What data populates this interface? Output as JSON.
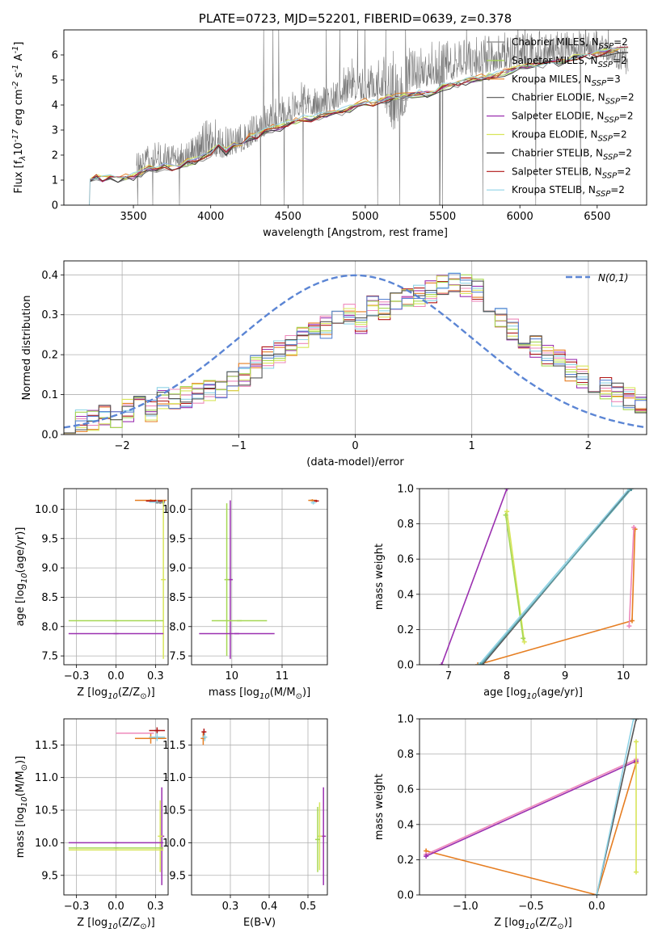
{
  "chart_data": [
    {
      "type": "line",
      "panel": "spectrum",
      "title": "PLATE=0723, MJD=52201, FIBERID=0639, z=0.378",
      "xlabel": "wavelength [Angstrom, rest frame]",
      "ylabel": "Flux [f$_λ$10$^{-17}$ erg cm$^{-2}$ s$^{-1}$ A$^{-1}$]",
      "xlim": [
        3050,
        6820
      ],
      "ylim": [
        0,
        7
      ],
      "xticks": [
        3500,
        4000,
        4500,
        5000,
        5500,
        6000,
        6500
      ],
      "yticks": [
        0,
        1,
        2,
        3,
        4,
        5,
        6
      ],
      "grid": false,
      "legend_position": "top-right",
      "observed_envelope": {
        "x": [
          3520,
          3600,
          3700,
          3800,
          3900,
          4000,
          4100,
          4200,
          4300,
          4400,
          4500,
          4600,
          4700,
          4800,
          4900,
          5000,
          5100,
          5200,
          5300,
          5400,
          5500,
          5600,
          5700,
          5800,
          5900,
          6000,
          6100,
          6200,
          6300,
          6400,
          6500,
          6600,
          6700
        ],
        "low": [
          0.6,
          0.8,
          0.9,
          1.0,
          0.9,
          1.0,
          1.2,
          1.5,
          1.9,
          2.3,
          2.6,
          2.9,
          3.0,
          3.1,
          3.2,
          3.5,
          3.6,
          0.5,
          3.6,
          3.8,
          3.9,
          4.2,
          4.3,
          4.4,
          4.7,
          4.8,
          4.9,
          5.0,
          5.2,
          5.3,
          5.4,
          5.0,
          4.5
        ],
        "high": [
          2.3,
          2.5,
          2.6,
          2.5,
          2.9,
          3.6,
          3.2,
          3.3,
          3.7,
          4.3,
          4.4,
          5.1,
          4.6,
          5.1,
          6.0,
          5.5,
          5.9,
          6.3,
          6.4,
          6.5,
          6.7,
          6.6,
          6.7,
          6.9,
          6.9,
          6.9,
          7.0,
          7.0,
          7.0,
          7.0,
          7.0,
          6.6,
          6.3
        ]
      },
      "model": {
        "x": [
          3220,
          3260,
          3300,
          3350,
          3400,
          3450,
          3500,
          3550,
          3600,
          3650,
          3700,
          3750,
          3800,
          3850,
          3900,
          3950,
          4000,
          4050,
          4100,
          4150,
          4200,
          4250,
          4300,
          4350,
          4400,
          4450,
          4500,
          4550,
          4600,
          4650,
          4700,
          4750,
          4800,
          4850,
          4900,
          4950,
          5000,
          5050,
          5100,
          5150,
          5200,
          5250,
          5300,
          5350,
          5400,
          5450,
          5500,
          5550,
          5600,
          5650,
          5700,
          5750,
          5800,
          5850,
          5900,
          5950,
          6000,
          6050,
          6100,
          6150,
          6200,
          6250,
          6300,
          6350,
          6400,
          6450,
          6500,
          6550,
          6600,
          6650,
          6700
        ],
        "y": [
          1.05,
          1.1,
          1.05,
          1.12,
          1.08,
          1.1,
          1.15,
          1.3,
          1.45,
          1.4,
          1.55,
          1.5,
          1.6,
          1.7,
          1.75,
          1.9,
          2.1,
          2.3,
          2.15,
          2.4,
          2.45,
          2.7,
          2.75,
          2.9,
          3.05,
          3.1,
          3.25,
          3.35,
          3.45,
          3.4,
          3.55,
          3.6,
          3.7,
          3.75,
          3.85,
          4.0,
          4.1,
          4.05,
          4.2,
          4.25,
          4.3,
          4.35,
          4.4,
          4.45,
          4.45,
          4.6,
          4.7,
          4.8,
          4.85,
          4.95,
          5.0,
          5.1,
          5.15,
          5.2,
          5.3,
          5.4,
          5.45,
          5.55,
          5.6,
          5.65,
          5.75,
          5.7,
          5.85,
          5.9,
          5.95,
          6.0,
          6.05,
          6.1,
          6.15,
          6.2,
          6.2
        ]
      },
      "series": [
        {
          "name": "Chabrier MILES, N$_{SSP}$=2",
          "color": "#888888"
        },
        {
          "name": "Salpeter MILES, N$_{SSP}$=2",
          "color": "#a6d854"
        },
        {
          "name": "Kroupa MILES, N$_{SSP}$=3",
          "color": "#e67e22"
        },
        {
          "name": "Chabrier ELODIE, N$_{SSP}$=2",
          "color": "#555555"
        },
        {
          "name": "Salpeter ELODIE, N$_{SSP}$=2",
          "color": "#9b30b0"
        },
        {
          "name": "Kroupa ELODIE, N$_{SSP}$=2",
          "color": "#d8e55a"
        },
        {
          "name": "Chabrier STELIB, N$_{SSP}$=2",
          "color": "#333333"
        },
        {
          "name": "Salpeter STELIB, N$_{SSP}$=2",
          "color": "#b01515"
        },
        {
          "name": "Kroupa STELIB, N$_{SSP}$=2",
          "color": "#8fd3e6"
        }
      ]
    },
    {
      "type": "line",
      "panel": "residual-distribution",
      "xlabel": "(data-model)/error",
      "ylabel": "Normed distribution",
      "xlim": [
        -2.5,
        2.5
      ],
      "ylim": [
        0,
        0.435
      ],
      "xticks": [
        -2,
        -1,
        0,
        1,
        2
      ],
      "yticks": [
        0.0,
        0.1,
        0.2,
        0.3,
        0.4
      ],
      "grid": true,
      "legend_position": "top-right",
      "gaussian": {
        "name": "$\\mathcal{N}(0,1)$",
        "mean": 0,
        "sigma": 1,
        "color": "#5b85d4"
      },
      "histogram_bins": [
        -2.5,
        2.5,
        50
      ],
      "histogram_center": [
        0.018,
        0.032,
        0.04,
        0.05,
        0.045,
        0.06,
        0.075,
        0.06,
        0.09,
        0.085,
        0.095,
        0.1,
        0.11,
        0.12,
        0.135,
        0.15,
        0.17,
        0.19,
        0.21,
        0.22,
        0.24,
        0.25,
        0.27,
        0.28,
        0.3,
        0.28,
        0.32,
        0.31,
        0.33,
        0.34,
        0.35,
        0.36,
        0.37,
        0.38,
        0.37,
        0.36,
        0.33,
        0.29,
        0.26,
        0.24,
        0.22,
        0.2,
        0.185,
        0.16,
        0.145,
        0.13,
        0.115,
        0.1,
        0.09,
        0.065
      ],
      "histogram_colors": [
        "#e67e22",
        "#9b30b0",
        "#b01515",
        "#8fd3e6",
        "#ee88bb",
        "#d8e55a",
        "#a6d854",
        "#5b85d4",
        "#555555"
      ]
    },
    {
      "type": "scatter",
      "panel": "age-vs-Z",
      "xlabel": "Z [log$_{10}$(Z/Z$_⊙$)]",
      "ylabel": "age  [log$_{10}$(age/yr)]",
      "xlim": [
        -0.33,
        0.33
      ],
      "ylim": [
        7.35,
        10.35
      ],
      "xticks": [
        -0.25,
        0.0,
        0.25
      ],
      "yticks": [
        7.5,
        8.0,
        8.5,
        9.0,
        9.5,
        10.0
      ],
      "grid": true,
      "errorbars": [
        {
          "x": 0.22,
          "y": 10.15,
          "xerr": 0.1,
          "yerr": 0.02,
          "color": "#e67e22"
        },
        {
          "x": 0.25,
          "y": 10.14,
          "xerr": 0.06,
          "yerr": 0.02,
          "color": "#b01515"
        },
        {
          "x": 0.26,
          "y": 10.12,
          "xerr": 0.05,
          "yerr": 0.03,
          "color": "#8fd3e6"
        },
        {
          "x": 0.28,
          "y": 10.11,
          "xerr": 0.03,
          "yerr": 0.02,
          "color": "#888888"
        },
        {
          "x": 0.3,
          "y": 8.8,
          "xerr": 0.0,
          "yerr": 1.35,
          "color": "#d8e55a"
        },
        {
          "x": 0.0,
          "y": 8.1,
          "xerr": 0.3,
          "yerr": 0.0,
          "color": "#a6d854"
        },
        {
          "x": 0.0,
          "y": 7.88,
          "xerr": 0.3,
          "yerr": 0.0,
          "color": "#9b30b0"
        }
      ]
    },
    {
      "type": "scatter",
      "panel": "age-vs-mass",
      "xlabel": "mass [log$_{10}$(M/M$_⊙$)]",
      "xlim": [
        9.2,
        11.9
      ],
      "ylim": [
        7.35,
        10.35
      ],
      "xticks": [
        10,
        11
      ],
      "yticks": [
        7.5,
        8.0,
        8.5,
        9.0,
        9.5,
        10.0
      ],
      "grid": true,
      "errorbars": [
        {
          "x": 11.6,
          "y": 10.15,
          "xerr": 0.08,
          "yerr": 0.02,
          "color": "#e67e22"
        },
        {
          "x": 11.68,
          "y": 10.14,
          "xerr": 0.05,
          "yerr": 0.02,
          "color": "#b01515"
        },
        {
          "x": 11.62,
          "y": 10.11,
          "xerr": 0.04,
          "yerr": 0.03,
          "color": "#8fd3e6"
        },
        {
          "x": 9.97,
          "y": 8.8,
          "xerr": 0.0,
          "yerr": 1.35,
          "color": "#9b30b0"
        },
        {
          "x": 9.9,
          "y": 8.8,
          "xerr": 0.0,
          "yerr": 1.3,
          "color": "#a6d854"
        },
        {
          "x": 10.15,
          "y": 8.1,
          "xerr": 0.55,
          "yerr": 0.0,
          "color": "#a6d854"
        },
        {
          "x": 10.1,
          "y": 7.88,
          "xerr": 0.75,
          "yerr": 0.0,
          "color": "#9b30b0"
        }
      ]
    },
    {
      "type": "line",
      "panel": "mass-weight-vs-age",
      "xlabel": "age  [log$_{10}$(age/yr)]",
      "ylabel": "mass weight",
      "xlim": [
        6.5,
        10.4
      ],
      "ylim": [
        0,
        1
      ],
      "xticks": [
        7,
        8,
        9,
        10
      ],
      "yticks": [
        0.0,
        0.2,
        0.4,
        0.6,
        0.8,
        1.0
      ],
      "grid": true,
      "series": [
        {
          "color": "#9b30b0",
          "x": [
            6.88,
            8.0
          ],
          "y": [
            0.0,
            1.0
          ]
        },
        {
          "color": "#d8e55a",
          "x": [
            8.0,
            8.3
          ],
          "y": [
            0.87,
            0.13
          ]
        },
        {
          "color": "#a6d854",
          "x": [
            7.98,
            8.28
          ],
          "y": [
            0.85,
            0.15
          ]
        },
        {
          "color": "#e67e22",
          "x": [
            7.5,
            10.15,
            10.2
          ],
          "y": [
            0.0,
            0.25,
            0.77
          ]
        },
        {
          "color": "#ee88bb",
          "x": [
            10.1,
            10.18
          ],
          "y": [
            0.22,
            0.78
          ]
        },
        {
          "color": "#555555",
          "x": [
            7.58,
            10.12
          ],
          "y": [
            0.0,
            1.0
          ]
        },
        {
          "color": "#8fd3e6",
          "x": [
            7.52,
            10.1
          ],
          "y": [
            0.0,
            1.0
          ]
        },
        {
          "color": "#5aa0a8",
          "x": [
            7.55,
            10.14
          ],
          "y": [
            0.0,
            1.0
          ]
        }
      ]
    },
    {
      "type": "scatter",
      "panel": "mass-vs-Z",
      "xlabel": "Z [log$_{10}$(Z/Z$_⊙$)]",
      "ylabel": "mass [log$_{10}$(M/M$_⊙$)]",
      "xlim": [
        -0.33,
        0.33
      ],
      "ylim": [
        9.2,
        11.9
      ],
      "xticks": [
        -0.25,
        0.0,
        0.25
      ],
      "yticks": [
        9.5,
        10.0,
        10.5,
        11.0,
        11.5
      ],
      "grid": true,
      "errorbars": [
        {
          "x": 0.22,
          "y": 11.6,
          "xerr": 0.1,
          "yerr": 0.08,
          "color": "#e67e22"
        },
        {
          "x": 0.26,
          "y": 11.72,
          "xerr": 0.05,
          "yerr": 0.05,
          "color": "#b01515"
        },
        {
          "x": 0.26,
          "y": 11.62,
          "xerr": 0.05,
          "yerr": 0.06,
          "color": "#8fd3e6"
        },
        {
          "x": 0.12,
          "y": 11.68,
          "xerr": 0.12,
          "yerr": 0.0,
          "color": "#ee88bb"
        },
        {
          "x": 0.29,
          "y": 10.1,
          "xerr": 0.0,
          "yerr": 0.75,
          "color": "#9b30b0"
        },
        {
          "x": 0.28,
          "y": 10.1,
          "xerr": 0.0,
          "yerr": 0.55,
          "color": "#d8e55a"
        },
        {
          "x": 0.0,
          "y": 10.0,
          "xerr": 0.3,
          "yerr": 0.0,
          "color": "#9b30b0"
        },
        {
          "x": 0.0,
          "y": 9.92,
          "xerr": 0.3,
          "yerr": 0.0,
          "color": "#a6d854"
        },
        {
          "x": 0.0,
          "y": 9.89,
          "xerr": 0.3,
          "yerr": 0.0,
          "color": "#d8e55a"
        }
      ]
    },
    {
      "type": "scatter",
      "panel": "mass-vs-EBV",
      "xlabel": "E(B-V)",
      "xlim": [
        0.2,
        0.55
      ],
      "ylim": [
        9.2,
        11.9
      ],
      "xticks": [
        0.3,
        0.4,
        0.5
      ],
      "yticks": [
        9.5,
        10.0,
        10.5,
        11.0,
        11.5
      ],
      "grid": true,
      "errorbars": [
        {
          "x": 0.23,
          "y": 11.6,
          "xerr": 0.0,
          "yerr": 0.1,
          "color": "#e67e22"
        },
        {
          "x": 0.232,
          "y": 11.7,
          "xerr": 0.0,
          "yerr": 0.05,
          "color": "#b01515"
        },
        {
          "x": 0.234,
          "y": 11.62,
          "xerr": 0.0,
          "yerr": 0.06,
          "color": "#8fd3e6"
        },
        {
          "x": 0.54,
          "y": 10.1,
          "xerr": 0.0,
          "yerr": 0.75,
          "color": "#9b30b0"
        },
        {
          "x": 0.53,
          "y": 10.1,
          "xerr": 0.0,
          "yerr": 0.52,
          "color": "#d8e55a"
        },
        {
          "x": 0.525,
          "y": 10.05,
          "xerr": 0.0,
          "yerr": 0.5,
          "color": "#a6d854"
        }
      ]
    },
    {
      "type": "line",
      "panel": "mass-weight-vs-Z",
      "xlabel": "Z [log$_{10}$(Z/Z$_⊙$)]",
      "ylabel": "mass weight",
      "xlim": [
        -1.35,
        0.38
      ],
      "ylim": [
        0,
        1
      ],
      "xticks": [
        -1.0,
        -0.5,
        0.0
      ],
      "yticks": [
        0.0,
        0.2,
        0.4,
        0.6,
        0.8,
        1.0
      ],
      "grid": true,
      "series": [
        {
          "color": "#e67e22",
          "x": [
            -1.3,
            0.0,
            0.3
          ],
          "y": [
            0.25,
            0.0,
            0.75
          ]
        },
        {
          "color": "#ee88bb",
          "x": [
            -1.3,
            0.3
          ],
          "y": [
            0.23,
            0.77
          ]
        },
        {
          "color": "#9b30b0",
          "x": [
            -1.3,
            0.3
          ],
          "y": [
            0.22,
            0.76
          ]
        },
        {
          "color": "#555555",
          "x": [
            0.0,
            0.3
          ],
          "y": [
            0.0,
            1.0
          ]
        },
        {
          "color": "#8fd3e6",
          "x": [
            0.0,
            0.28
          ],
          "y": [
            0.0,
            1.0
          ]
        },
        {
          "color": "#d8e55a",
          "x": [
            0.3,
            0.3
          ],
          "y": [
            0.87,
            0.13
          ]
        }
      ]
    }
  ]
}
